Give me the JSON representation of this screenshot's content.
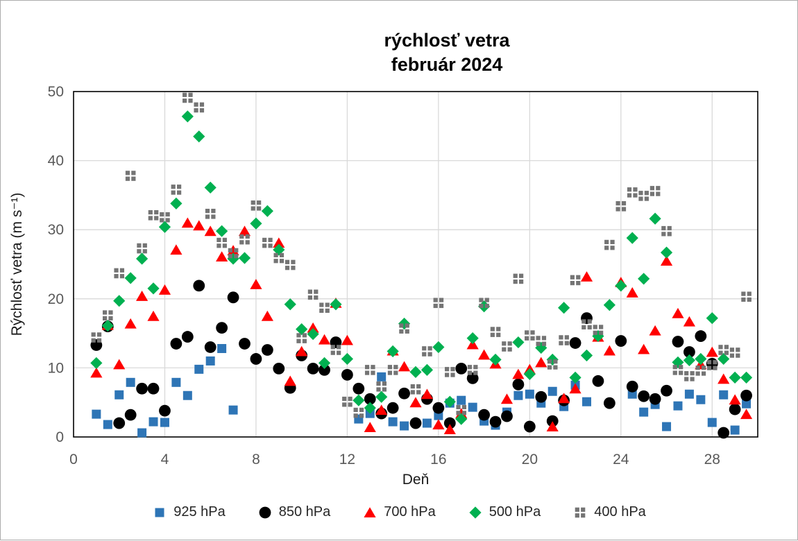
{
  "chart_data": {
    "type": "scatter",
    "title_line1": "rýchlosť vetra",
    "title_line2": "február 2024",
    "xlabel": "Deň",
    "ylabel": "Rýchlosť vetra (m s⁻¹)",
    "xlim": [
      0,
      30
    ],
    "ylim": [
      0,
      50
    ],
    "x_ticks": [
      0,
      4,
      8,
      12,
      16,
      20,
      24,
      28
    ],
    "y_ticks": [
      0,
      10,
      20,
      30,
      40,
      50
    ],
    "grid": true,
    "legend_position": "bottom",
    "colors": {
      "gridline": "#d9d9d9",
      "axis_border": "#000000",
      "tick_label": "#595959",
      "axis_title": "#1a1a1a",
      "title": "#000000"
    },
    "x": [
      1,
      1.5,
      2,
      2.5,
      3,
      3.5,
      4,
      4.5,
      5,
      5.5,
      6,
      6.5,
      7,
      7.5,
      8,
      8.5,
      9,
      9.5,
      10,
      10.5,
      11,
      11.5,
      12,
      12.5,
      13,
      13.5,
      14,
      14.5,
      15,
      15.5,
      16,
      16.5,
      17,
      17.5,
      18,
      18.5,
      19,
      19.5,
      20,
      20.5,
      21,
      21.5,
      22,
      22.5,
      23,
      23.5,
      24,
      24.5,
      25,
      25.5,
      26,
      26.5,
      27,
      27.5,
      28,
      28.5,
      29,
      29.5
    ],
    "series": [
      {
        "name": "925 hPa",
        "marker": "square",
        "color": "#2E75B6",
        "values": [
          3.3,
          1.8,
          6.1,
          7.9,
          0.6,
          2.2,
          2.1,
          7.9,
          6.0,
          9.8,
          11.0,
          12.8,
          3.9,
          null,
          null,
          null,
          null,
          null,
          null,
          null,
          null,
          null,
          null,
          2.6,
          3.4,
          8.7,
          2.2,
          1.6,
          null,
          2.0,
          3.1,
          4.9,
          5.3,
          4.3,
          2.3,
          1.7,
          3.6,
          6.0,
          6.2,
          4.9,
          6.6,
          4.4,
          7.5,
          5.1,
          null,
          null,
          null,
          6.2,
          3.6,
          4.7,
          1.5,
          4.5,
          6.2,
          5.4,
          2.1,
          6.1,
          1.0,
          4.8
        ]
      },
      {
        "name": "850 hPa",
        "marker": "circle",
        "color": "#000000",
        "values": [
          13.3,
          16.0,
          2.0,
          3.2,
          7.0,
          7.0,
          3.8,
          13.5,
          14.5,
          21.9,
          13.0,
          15.8,
          20.2,
          13.5,
          11.3,
          12.6,
          9.9,
          7.1,
          11.8,
          9.9,
          9.7,
          13.7,
          9.0,
          7.0,
          5.5,
          3.4,
          4.2,
          6.3,
          2.0,
          5.5,
          4.2,
          2.0,
          9.9,
          8.5,
          3.2,
          2.2,
          3.0,
          7.6,
          1.5,
          5.8,
          2.3,
          5.3,
          13.6,
          17.2,
          8.1,
          4.9,
          13.9,
          7.3,
          5.9,
          5.5,
          6.7,
          13.8,
          12.3,
          14.6,
          10.6,
          0.6,
          4.0,
          6.0
        ]
      },
      {
        "name": "700 hPa",
        "marker": "triangle",
        "color": "#FF0000",
        "values": [
          9.3,
          16.2,
          10.5,
          16.4,
          20.4,
          17.5,
          21.3,
          27.1,
          31.0,
          30.6,
          29.8,
          26.1,
          27.0,
          29.8,
          22.1,
          17.5,
          28.1,
          8.1,
          12.4,
          15.8,
          14.1,
          19.4,
          14.0,
          null,
          1.4,
          3.9,
          12.5,
          10.2,
          5.0,
          6.2,
          1.8,
          1.1,
          3.4,
          13.4,
          11.9,
          10.6,
          5.5,
          9.1,
          9.8,
          10.8,
          1.5,
          5.6,
          7.0,
          23.2,
          14.5,
          12.5,
          22.4,
          20.9,
          12.7,
          15.4,
          25.5,
          17.9,
          16.7,
          10.5,
          12.3,
          8.4,
          5.4,
          3.3
        ]
      },
      {
        "name": "500 hPa",
        "marker": "diamond",
        "color": "#00B050",
        "values": [
          10.7,
          16.1,
          19.7,
          23.0,
          25.8,
          21.5,
          30.4,
          33.8,
          46.4,
          43.5,
          36.1,
          29.8,
          25.8,
          25.9,
          30.9,
          32.7,
          27.1,
          19.2,
          15.6,
          14.9,
          10.7,
          19.2,
          11.3,
          5.3,
          4.2,
          5.8,
          12.4,
          16.4,
          9.4,
          9.7,
          13.0,
          5.1,
          2.6,
          14.3,
          18.9,
          11.2,
          null,
          13.7,
          9.1,
          12.9,
          11.2,
          18.7,
          8.6,
          11.8,
          14.6,
          19.1,
          21.9,
          28.8,
          22.9,
          31.6,
          26.7,
          10.8,
          11.1,
          11.3,
          17.2,
          11.3,
          8.6,
          8.6
        ]
      },
      {
        "name": "400 hPa",
        "marker": "foursquare",
        "color": "#747474",
        "values": [
          14.4,
          17.6,
          23.7,
          37.8,
          27.3,
          32.1,
          31.8,
          35.8,
          49.1,
          47.7,
          32.3,
          28.1,
          26.6,
          28.6,
          33.5,
          28.1,
          25.9,
          24.9,
          14.3,
          20.6,
          18.7,
          12.6,
          5.1,
          3.5,
          9.7,
          7.3,
          9.7,
          15.7,
          6.9,
          12.4,
          19.4,
          9.4,
          3.9,
          9.7,
          19.4,
          15.2,
          13.1,
          22.9,
          14.7,
          13.9,
          10.5,
          14.0,
          22.7,
          16.3,
          15.5,
          27.8,
          33.4,
          35.4,
          34.9,
          35.6,
          29.8,
          9.7,
          8.8,
          9.6,
          10.4,
          12.6,
          12.2,
          20.3
        ]
      }
    ]
  }
}
